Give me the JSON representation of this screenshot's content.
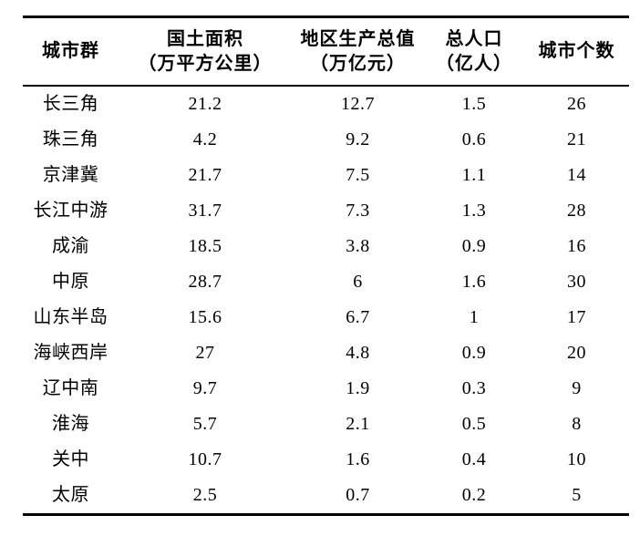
{
  "colors": {
    "background": "#ffffff",
    "text": "#000000",
    "rule": "#000000"
  },
  "chart_data": {
    "type": "table",
    "style": "three-line academic table",
    "columns": [
      {
        "title": "城市群",
        "unit": ""
      },
      {
        "title": "国土面积",
        "unit": "（万平方公里）"
      },
      {
        "title": "地区生产总值",
        "unit": "（万亿元）"
      },
      {
        "title": "总人口",
        "unit": "（亿人）"
      },
      {
        "title": "城市个数",
        "unit": ""
      }
    ],
    "rows": [
      {
        "name": "长三角",
        "values": [
          21.2,
          12.7,
          1.5,
          26
        ]
      },
      {
        "name": "珠三角",
        "values": [
          4.2,
          9.2,
          0.6,
          21
        ]
      },
      {
        "name": "京津冀",
        "values": [
          21.7,
          7.5,
          1.1,
          14
        ]
      },
      {
        "name": "长江中游",
        "values": [
          31.7,
          7.3,
          1.3,
          28
        ]
      },
      {
        "name": "成渝",
        "values": [
          18.5,
          3.8,
          0.9,
          16
        ]
      },
      {
        "name": "中原",
        "values": [
          28.7,
          6,
          1.6,
          30
        ]
      },
      {
        "name": "山东半岛",
        "values": [
          15.6,
          6.7,
          1,
          17
        ]
      },
      {
        "name": "海峡西岸",
        "values": [
          27,
          4.8,
          0.9,
          20
        ]
      },
      {
        "name": "辽中南",
        "values": [
          9.7,
          1.9,
          0.3,
          9
        ]
      },
      {
        "name": "淮海",
        "values": [
          5.7,
          2.1,
          0.5,
          8
        ]
      },
      {
        "name": "关中",
        "values": [
          10.7,
          1.6,
          0.4,
          10
        ]
      },
      {
        "name": "太原",
        "values": [
          2.5,
          0.7,
          0.2,
          5
        ]
      }
    ]
  }
}
